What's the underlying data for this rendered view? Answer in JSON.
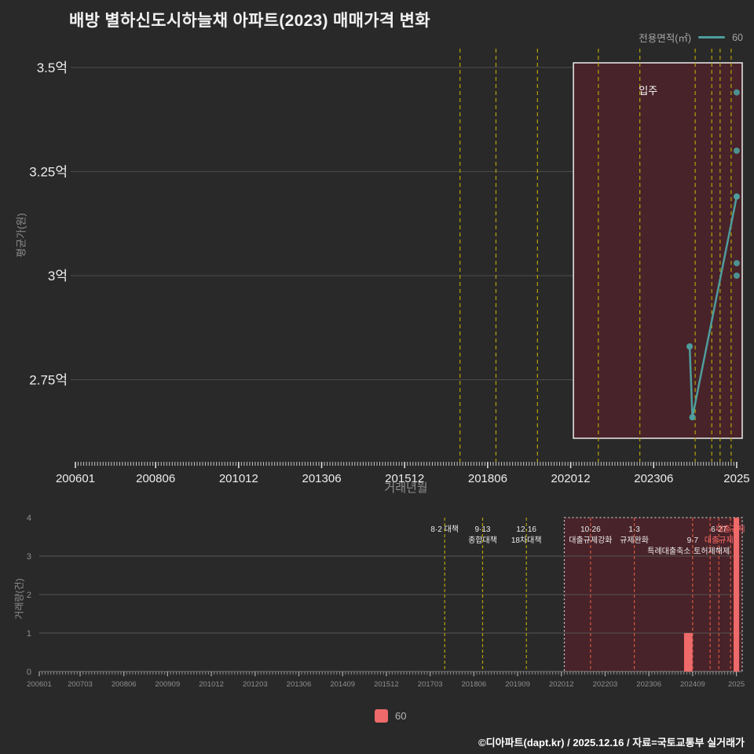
{
  "title": "배방 별하신도시하늘채 아파트(2023) 매매가격 변화",
  "legend_top": {
    "label": "전용면적(㎡)",
    "series_label": "60"
  },
  "legend_bottom": {
    "label": "60"
  },
  "footer": "©디아파트(dapt.kr) / 2025.12.16 / 자료=국토교통부 실거래가",
  "colors": {
    "background": "#292929",
    "teal": "#4e9d9d",
    "bar_red": "#ef6a6a",
    "dashed_yellow": "#b5a109",
    "dashed_red": "#d1583f",
    "region_fill": "#482329",
    "region_border_top": "#ececec",
    "region_border_bottom": "#c8c8c8",
    "grid": "#4d4d4d",
    "tick_text_top": "#ededed",
    "tick_text_bottom": "#8f8f8f"
  },
  "chart_data": [
    {
      "type": "line",
      "title": "배방 별하신도시하늘채 아파트(2023) 매매가격 변화",
      "xlabel": "거래년월",
      "ylabel": "평균가(원)",
      "y_unit": "억",
      "ylim": [
        2.55,
        3.55
      ],
      "y_ticks": [
        {
          "v": 3.5,
          "label": "3.5억"
        },
        {
          "v": 3.25,
          "label": "3.25억"
        },
        {
          "v": 3.0,
          "label": "3억"
        },
        {
          "v": 2.75,
          "label": "2.75억"
        }
      ],
      "x_ticks": [
        {
          "m": "200601",
          "label": "200601"
        },
        {
          "m": "200806",
          "label": "200806"
        },
        {
          "m": "201012",
          "label": "201012"
        },
        {
          "m": "201306",
          "label": "201306"
        },
        {
          "m": "201512",
          "label": "201512"
        },
        {
          "m": "201806",
          "label": "201806"
        },
        {
          "m": "202012",
          "label": "202012"
        },
        {
          "m": "202306",
          "label": "202306"
        },
        {
          "m": "202512",
          "label": "2025"
        }
      ],
      "series": [
        {
          "name": "60",
          "color": "#4e9d9d",
          "points": [
            [
              "202407",
              2.83
            ],
            [
              "202408",
              2.66
            ],
            [
              "202512",
              3.19
            ]
          ]
        }
      ],
      "scatter": [
        [
          "202512",
          3.44
        ],
        [
          "202512",
          3.3
        ],
        [
          "202512",
          3.03
        ],
        [
          "202512",
          3.0
        ]
      ],
      "region": {
        "from": "202101",
        "label": "입주",
        "label_month": "202304"
      },
      "vlines": [
        "201708",
        "201809",
        "201912",
        "202110",
        "202301",
        "202409",
        "202503",
        "202506",
        "202510"
      ]
    },
    {
      "type": "bar",
      "xlabel": "",
      "ylabel": "거래량(건)",
      "ylim": [
        0,
        4
      ],
      "y_ticks": [
        0,
        1,
        2,
        3,
        4
      ],
      "x_ticks": [
        {
          "m": "200601",
          "label": "200601"
        },
        {
          "m": "200703",
          "label": "200703"
        },
        {
          "m": "200806",
          "label": "200806"
        },
        {
          "m": "200909",
          "label": "200909"
        },
        {
          "m": "201012",
          "label": "201012"
        },
        {
          "m": "201203",
          "label": "201203"
        },
        {
          "m": "201306",
          "label": "201306"
        },
        {
          "m": "201409",
          "label": "201409"
        },
        {
          "m": "201512",
          "label": "201512"
        },
        {
          "m": "201703",
          "label": "201703"
        },
        {
          "m": "201806",
          "label": "201806"
        },
        {
          "m": "201909",
          "label": "201909"
        },
        {
          "m": "202012",
          "label": "202012"
        },
        {
          "m": "202203",
          "label": "202203"
        },
        {
          "m": "202306",
          "label": "202306"
        },
        {
          "m": "202409",
          "label": "202409"
        },
        {
          "m": "202512",
          "label": "2025"
        }
      ],
      "bars": [
        [
          "202407",
          1
        ],
        [
          "202408",
          1
        ],
        [
          "202512",
          4
        ]
      ],
      "bar_series_name": "60",
      "bar_color": "#ef6a6a",
      "region": {
        "from": "202101"
      },
      "annotations": [
        {
          "m": "201708",
          "texts": [
            {
              "t": "8·2 대책",
              "row": 0
            }
          ]
        },
        {
          "m": "201809",
          "texts": [
            {
              "t": "9·13",
              "row": 0
            },
            {
              "t": "종합대책",
              "row": 1
            }
          ]
        },
        {
          "m": "201912",
          "texts": [
            {
              "t": "12·16",
              "row": 0
            },
            {
              "t": "18차대책",
              "row": 1
            }
          ]
        },
        {
          "m": "202110",
          "texts": [
            {
              "t": "10·26",
              "row": 0
            },
            {
              "t": "대출규제강화",
              "row": 1
            }
          ]
        },
        {
          "m": "202301",
          "texts": [
            {
              "t": "1·3",
              "row": 0
            },
            {
              "t": "규제완화",
              "row": 1
            }
          ]
        },
        {
          "m": "202409",
          "texts": [
            {
              "t": "9·7",
              "row": 1
            },
            {
              "t": "특례대출축소",
              "row": 2,
              "dx": -30
            }
          ]
        },
        {
          "m": "202503",
          "texts": [
            {
              "t": "토허제해제",
              "row": 2,
              "dx": 2
            }
          ]
        },
        {
          "m": "202506",
          "texts": [
            {
              "t": "6·27",
              "row": 0
            },
            {
              "t": "대출규제",
              "row": 1,
              "c": "#ff6b6b"
            }
          ]
        },
        {
          "m": "202510",
          "texts": [
            {
              "t": "대출규제",
              "row": 0,
              "c": "#ff6b6b"
            }
          ]
        }
      ]
    }
  ]
}
